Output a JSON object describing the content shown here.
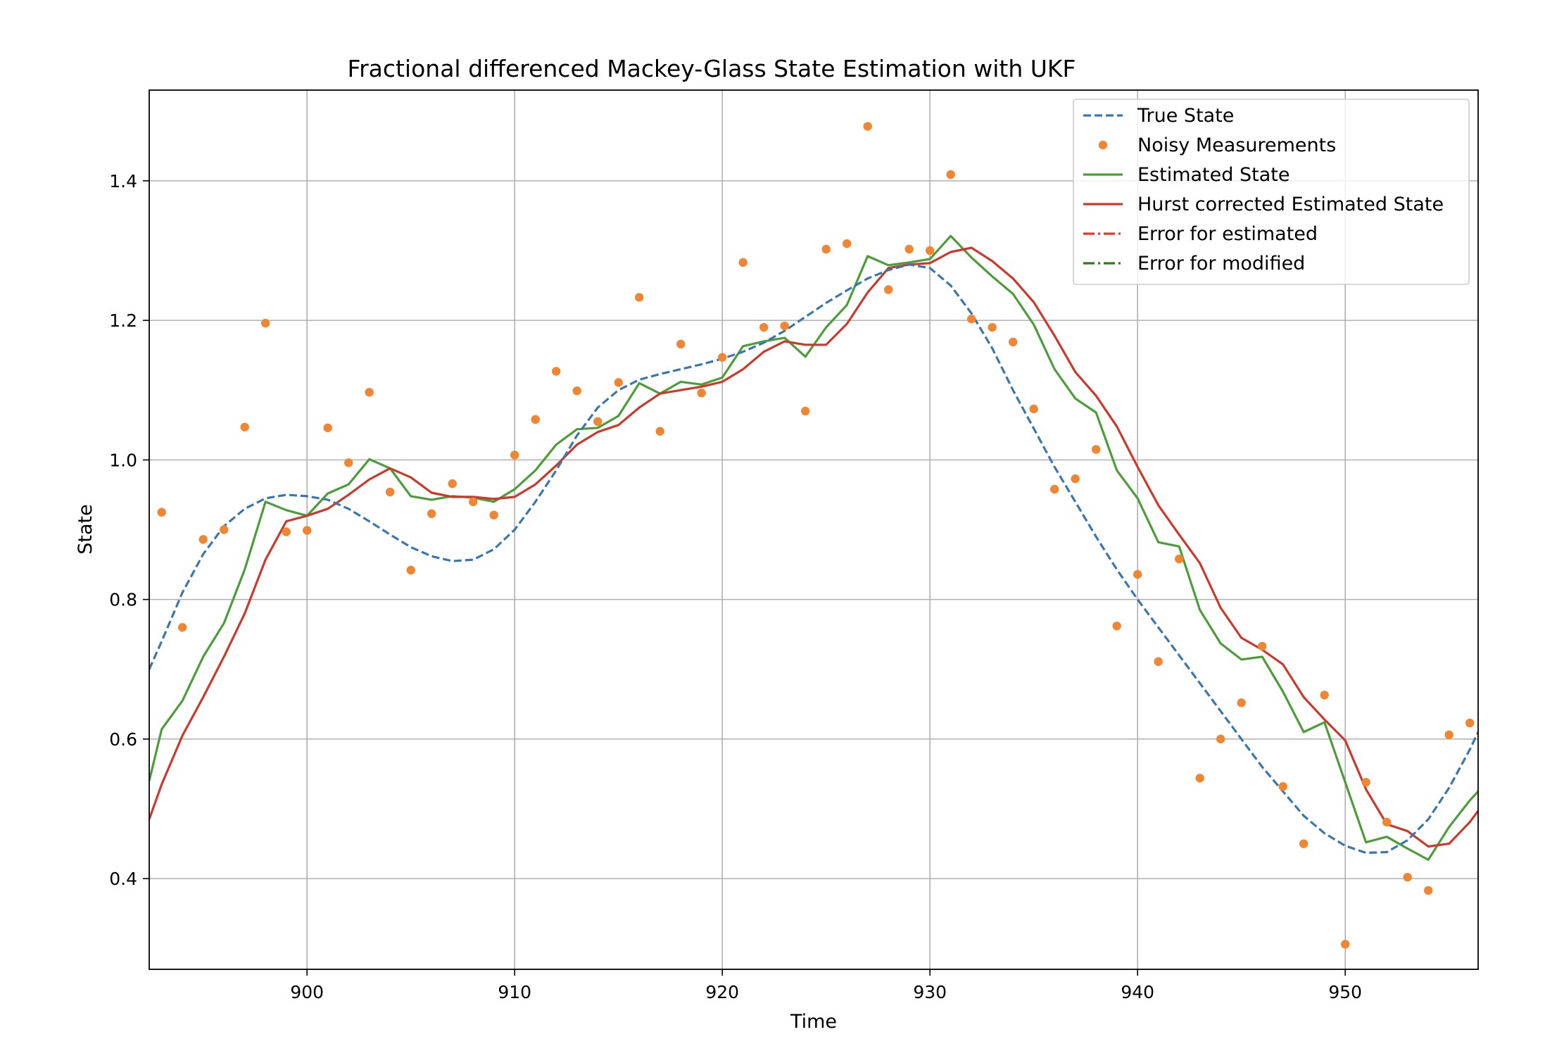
{
  "chart_data": {
    "type": "line",
    "title": "Fractional differenced Mackey-Glass State Estimation with UKF",
    "xlabel": "Time",
    "ylabel": "State",
    "xlim": [
      892.4,
      956.4
    ],
    "ylim": [
      0.27,
      1.53
    ],
    "xticks": [
      900,
      910,
      920,
      930,
      940,
      950
    ],
    "yticks": [
      0.4,
      0.6,
      0.8,
      1.0,
      1.2,
      1.4
    ],
    "grid": true,
    "legend_position": "upper right",
    "colors": {
      "true": "#3a76b0",
      "noisy": "#f08532",
      "estimated": "#4c9d3a",
      "hurst": "#c93a2d",
      "err_est": "#e03828",
      "err_mod": "#2f7a1c"
    },
    "series": [
      {
        "name": "True State",
        "style": "dashed",
        "color": "#3a76b0",
        "x": [
          892.4,
          893,
          894,
          895,
          896,
          897,
          898,
          899,
          900,
          901,
          902,
          903,
          904,
          905,
          906,
          907,
          908,
          909,
          910,
          911,
          912,
          913,
          914,
          915,
          916,
          917,
          918,
          919,
          920,
          921,
          922,
          923,
          924,
          925,
          926,
          927,
          928,
          929,
          930,
          931,
          932,
          933,
          934,
          935,
          936,
          937,
          938,
          939,
          940,
          941,
          942,
          943,
          944,
          945,
          946,
          947,
          948,
          949,
          950,
          951,
          952,
          953,
          954,
          955,
          956,
          956.4
        ],
        "y": [
          0.7,
          0.74,
          0.81,
          0.865,
          0.905,
          0.93,
          0.945,
          0.95,
          0.948,
          0.943,
          0.93,
          0.912,
          0.893,
          0.875,
          0.862,
          0.855,
          0.857,
          0.872,
          0.9,
          0.94,
          0.985,
          1.035,
          1.075,
          1.1,
          1.115,
          1.123,
          1.13,
          1.137,
          1.145,
          1.155,
          1.168,
          1.185,
          1.205,
          1.225,
          1.243,
          1.26,
          1.272,
          1.28,
          1.275,
          1.25,
          1.21,
          1.16,
          1.1,
          1.045,
          0.99,
          0.94,
          0.89,
          0.843,
          0.8,
          0.76,
          0.72,
          0.68,
          0.64,
          0.6,
          0.56,
          0.525,
          0.49,
          0.465,
          0.447,
          0.437,
          0.438,
          0.455,
          0.485,
          0.53,
          0.585,
          0.61
        ]
      },
      {
        "name": "Noisy Measurements",
        "style": "markers",
        "color": "#f08532",
        "x": [
          893,
          894,
          895,
          896,
          897,
          898,
          899,
          900,
          901,
          902,
          903,
          904,
          905,
          906,
          907,
          908,
          909,
          910,
          911,
          912,
          913,
          914,
          915,
          916,
          917,
          918,
          919,
          920,
          921,
          922,
          923,
          924,
          925,
          926,
          927,
          928,
          929,
          930,
          931,
          932,
          933,
          934,
          935,
          936,
          937,
          938,
          939,
          940,
          941,
          942,
          943,
          944,
          945,
          946,
          947,
          948,
          949,
          950,
          951,
          952,
          953,
          954,
          955,
          956
        ],
        "y": [
          0.925,
          0.76,
          0.886,
          0.9,
          1.047,
          1.196,
          0.897,
          0.899,
          1.046,
          0.996,
          1.097,
          0.954,
          0.842,
          0.923,
          0.966,
          0.94,
          0.921,
          1.007,
          1.058,
          1.127,
          1.099,
          1.055,
          1.111,
          1.233,
          1.041,
          1.166,
          1.096,
          1.147,
          1.283,
          1.19,
          1.192,
          1.07,
          1.302,
          1.31,
          1.478,
          1.244,
          1.302,
          1.3,
          1.409,
          1.202,
          1.19,
          1.169,
          1.073,
          0.958,
          0.973,
          1.015,
          0.762,
          0.836,
          0.711,
          0.858,
          0.544,
          0.6,
          0.652,
          0.733,
          0.532,
          0.45,
          0.663,
          0.306,
          0.538,
          0.481,
          0.402,
          0.383,
          0.606,
          0.623
        ]
      },
      {
        "name": "Estimated State",
        "style": "solid",
        "color": "#4c9d3a",
        "x": [
          892.4,
          893,
          894,
          895,
          896,
          897,
          898,
          899,
          900,
          901,
          902,
          903,
          904,
          905,
          906,
          907,
          908,
          909,
          910,
          911,
          912,
          913,
          914,
          915,
          916,
          917,
          918,
          919,
          920,
          921,
          922,
          923,
          924,
          925,
          926,
          927,
          928,
          929,
          930,
          931,
          932,
          933,
          934,
          935,
          936,
          937,
          938,
          939,
          940,
          941,
          942,
          943,
          944,
          945,
          946,
          947,
          948,
          949,
          950,
          951,
          952,
          953,
          954,
          955,
          956,
          956.4
        ],
        "y": [
          0.54,
          0.614,
          0.655,
          0.718,
          0.766,
          0.843,
          0.94,
          0.928,
          0.92,
          0.952,
          0.965,
          1.001,
          0.988,
          0.948,
          0.943,
          0.948,
          0.946,
          0.94,
          0.958,
          0.985,
          1.022,
          1.044,
          1.046,
          1.063,
          1.11,
          1.095,
          1.112,
          1.108,
          1.118,
          1.163,
          1.17,
          1.175,
          1.148,
          1.19,
          1.222,
          1.292,
          1.279,
          1.283,
          1.288,
          1.321,
          1.29,
          1.263,
          1.238,
          1.194,
          1.13,
          1.088,
          1.068,
          0.985,
          0.945,
          0.882,
          0.876,
          0.785,
          0.737,
          0.714,
          0.718,
          0.668,
          0.61,
          0.624,
          0.538,
          0.452,
          0.46,
          0.443,
          0.427,
          0.474,
          0.512,
          0.525
        ]
      },
      {
        "name": "Hurst corrected Estimated State",
        "style": "solid",
        "color": "#c93a2d",
        "x": [
          892.4,
          893,
          894,
          895,
          896,
          897,
          898,
          899,
          900,
          901,
          902,
          903,
          904,
          905,
          906,
          907,
          908,
          909,
          910,
          911,
          912,
          913,
          914,
          915,
          916,
          917,
          918,
          919,
          920,
          921,
          922,
          923,
          924,
          925,
          926,
          927,
          928,
          929,
          930,
          931,
          932,
          933,
          934,
          935,
          936,
          937,
          938,
          939,
          940,
          941,
          942,
          943,
          944,
          945,
          946,
          947,
          948,
          949,
          950,
          951,
          952,
          953,
          954,
          955,
          956,
          956.4
        ],
        "y": [
          0.485,
          0.535,
          0.605,
          0.66,
          0.718,
          0.78,
          0.857,
          0.912,
          0.92,
          0.93,
          0.95,
          0.972,
          0.988,
          0.975,
          0.953,
          0.947,
          0.947,
          0.944,
          0.947,
          0.965,
          0.992,
          1.022,
          1.04,
          1.05,
          1.075,
          1.095,
          1.1,
          1.105,
          1.112,
          1.13,
          1.155,
          1.17,
          1.165,
          1.165,
          1.195,
          1.24,
          1.275,
          1.28,
          1.282,
          1.298,
          1.304,
          1.285,
          1.26,
          1.226,
          1.178,
          1.126,
          1.092,
          1.048,
          0.99,
          0.935,
          0.893,
          0.852,
          0.788,
          0.745,
          0.728,
          0.707,
          0.66,
          0.628,
          0.598,
          0.528,
          0.478,
          0.468,
          0.446,
          0.45,
          0.481,
          0.497
        ]
      },
      {
        "name": "Error for estimated",
        "style": "dashdot",
        "color": "#e03828",
        "x": [],
        "y": []
      },
      {
        "name": "Error for modified",
        "style": "dashdot",
        "color": "#2f7a1c",
        "x": [],
        "y": []
      }
    ]
  }
}
